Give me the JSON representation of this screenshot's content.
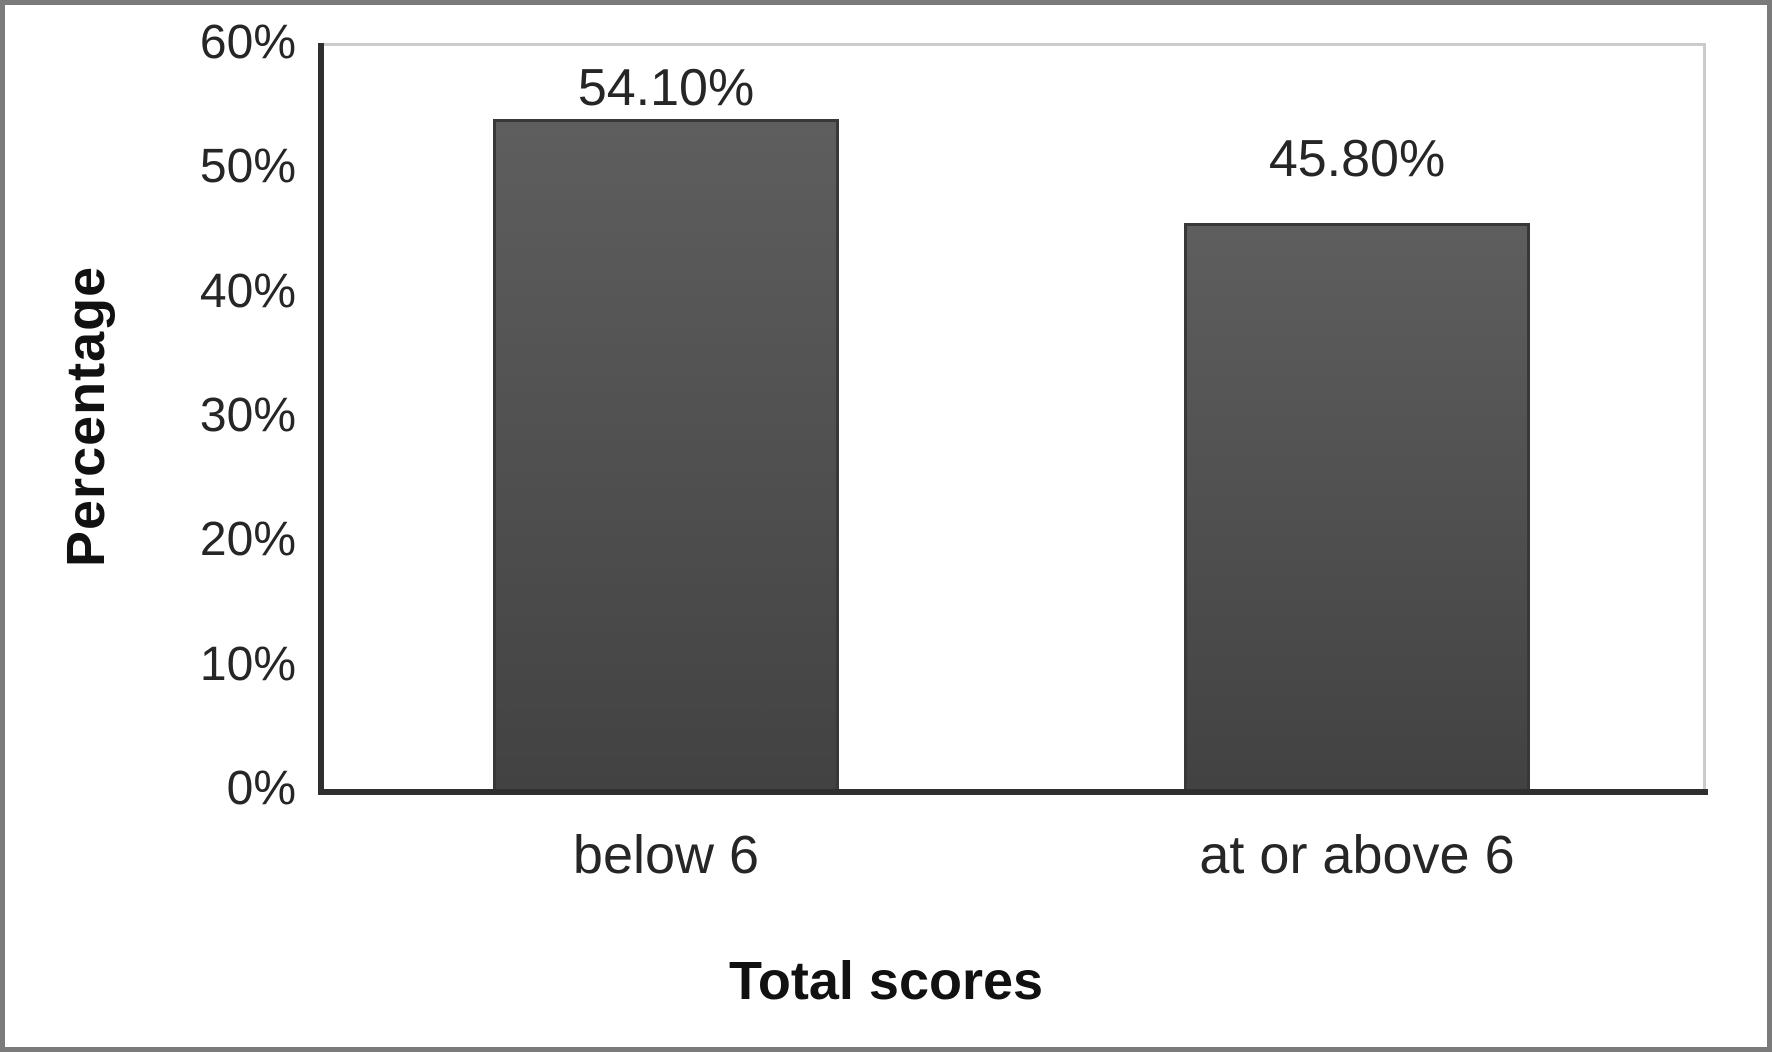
{
  "chart_data": {
    "type": "bar",
    "title": "",
    "categories": [
      "below 6",
      "at or above 6"
    ],
    "values": [
      54.1,
      45.8
    ],
    "data_labels": [
      "54.10%",
      "45.80%"
    ],
    "xlabel": "Total scores",
    "ylabel": "Percentage",
    "ylim": [
      0,
      60
    ],
    "yticks": [
      0,
      10,
      20,
      30,
      40,
      50,
      60
    ],
    "ytick_labels": [
      "0%",
      "10%",
      "20%",
      "30%",
      "40%",
      "50%",
      "60%"
    ],
    "grid": false,
    "legend": false,
    "colors": {
      "bar_gradient_top": "#5e5e5e",
      "bar_gradient_bottom": "#424242",
      "bar_border": "#383838",
      "axis_line": "#2f2f2f",
      "plot_border": "#cbcbcb",
      "figure_border": "#7b7b7b",
      "text": "#262626"
    }
  }
}
